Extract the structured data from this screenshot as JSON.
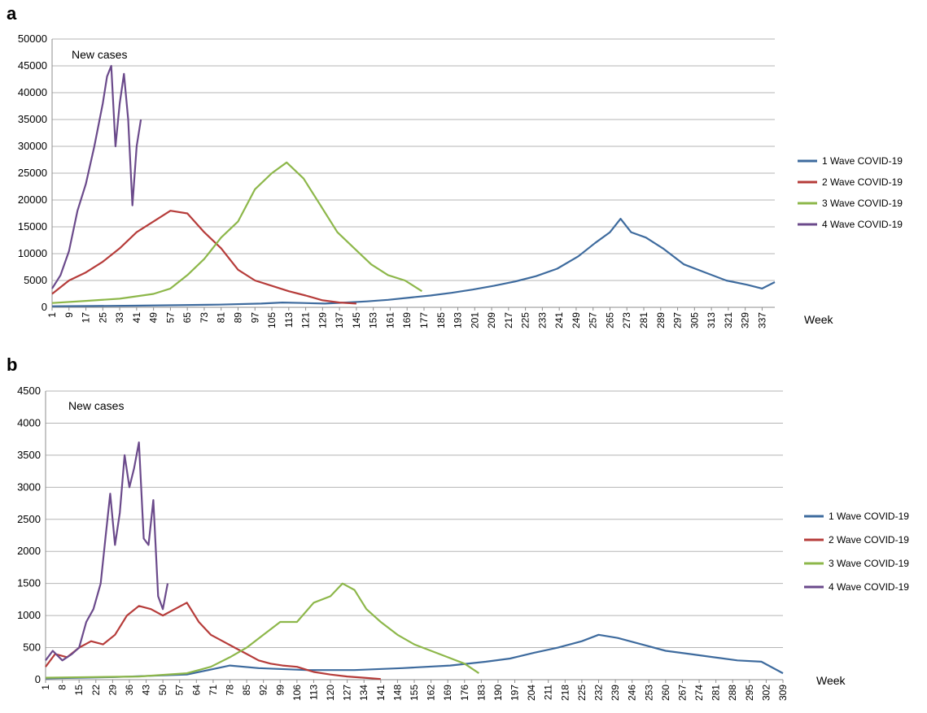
{
  "chart_data": [
    {
      "panel_label": "a",
      "type": "line",
      "annotation": "New cases",
      "xlabel": "Week",
      "ylim": [
        0,
        50000
      ],
      "yticks": [
        0,
        5000,
        10000,
        15000,
        20000,
        25000,
        30000,
        35000,
        40000,
        45000,
        50000
      ],
      "xlim": [
        1,
        343
      ],
      "xticks": [
        1,
        9,
        17,
        25,
        33,
        41,
        49,
        57,
        65,
        73,
        81,
        89,
        97,
        105,
        113,
        121,
        129,
        137,
        145,
        153,
        161,
        169,
        177,
        185,
        193,
        201,
        209,
        217,
        225,
        233,
        241,
        249,
        257,
        265,
        273,
        281,
        289,
        297,
        305,
        313,
        321,
        329,
        337
      ],
      "grid": "horizontal",
      "legend_position": "right",
      "series": [
        {
          "name": "1 Wave COVID-19",
          "color": "#3e6b9e",
          "points": [
            [
              1,
              200
            ],
            [
              20,
              250
            ],
            [
              40,
              300
            ],
            [
              60,
              400
            ],
            [
              80,
              500
            ],
            [
              100,
              700
            ],
            [
              110,
              900
            ],
            [
              120,
              800
            ],
            [
              130,
              700
            ],
            [
              140,
              900
            ],
            [
              150,
              1100
            ],
            [
              160,
              1400
            ],
            [
              170,
              1800
            ],
            [
              180,
              2200
            ],
            [
              190,
              2700
            ],
            [
              200,
              3300
            ],
            [
              210,
              4000
            ],
            [
              220,
              4800
            ],
            [
              230,
              5800
            ],
            [
              240,
              7200
            ],
            [
              250,
              9500
            ],
            [
              258,
              12000
            ],
            [
              265,
              14000
            ],
            [
              270,
              16500
            ],
            [
              275,
              14000
            ],
            [
              282,
              13000
            ],
            [
              290,
              11000
            ],
            [
              300,
              8000
            ],
            [
              310,
              6500
            ],
            [
              320,
              5000
            ],
            [
              330,
              4200
            ],
            [
              337,
              3500
            ],
            [
              343,
              4700
            ]
          ]
        },
        {
          "name": "2 Wave COVID-19",
          "color": "#b63c3a",
          "points": [
            [
              1,
              2500
            ],
            [
              9,
              5000
            ],
            [
              17,
              6500
            ],
            [
              25,
              8500
            ],
            [
              33,
              11000
            ],
            [
              41,
              14000
            ],
            [
              49,
              16000
            ],
            [
              57,
              18000
            ],
            [
              65,
              17500
            ],
            [
              73,
              14000
            ],
            [
              81,
              11000
            ],
            [
              89,
              7000
            ],
            [
              97,
              5000
            ],
            [
              105,
              4000
            ],
            [
              113,
              3000
            ],
            [
              121,
              2200
            ],
            [
              129,
              1300
            ],
            [
              137,
              900
            ],
            [
              145,
              700
            ]
          ]
        },
        {
          "name": "3 Wave COVID-19",
          "color": "#8db74a",
          "points": [
            [
              1,
              800
            ],
            [
              17,
              1200
            ],
            [
              33,
              1600
            ],
            [
              49,
              2500
            ],
            [
              57,
              3500
            ],
            [
              65,
              6000
            ],
            [
              73,
              9000
            ],
            [
              81,
              13000
            ],
            [
              89,
              16000
            ],
            [
              97,
              22000
            ],
            [
              105,
              25000
            ],
            [
              112,
              27000
            ],
            [
              120,
              24000
            ],
            [
              128,
              19000
            ],
            [
              136,
              14000
            ],
            [
              144,
              11000
            ],
            [
              152,
              8000
            ],
            [
              160,
              6000
            ],
            [
              168,
              5000
            ],
            [
              176,
              3000
            ]
          ]
        },
        {
          "name": "4 Wave COVID-19",
          "color": "#6b4a8b",
          "points": [
            [
              1,
              3500
            ],
            [
              5,
              6000
            ],
            [
              9,
              10500
            ],
            [
              13,
              18000
            ],
            [
              17,
              23000
            ],
            [
              21,
              30000
            ],
            [
              25,
              38000
            ],
            [
              27,
              43000
            ],
            [
              29,
              45000
            ],
            [
              31,
              30000
            ],
            [
              33,
              38000
            ],
            [
              35,
              43500
            ],
            [
              37,
              35000
            ],
            [
              39,
              19000
            ],
            [
              41,
              30000
            ],
            [
              43,
              35000
            ]
          ]
        }
      ]
    },
    {
      "panel_label": "b",
      "type": "line",
      "annotation": "New cases",
      "xlabel": "Week",
      "ylim": [
        0,
        4500
      ],
      "yticks": [
        0,
        500,
        1000,
        1500,
        2000,
        2500,
        3000,
        3500,
        4000,
        4500
      ],
      "xlim": [
        1,
        309
      ],
      "xticks": [
        1,
        8,
        15,
        22,
        29,
        36,
        43,
        50,
        57,
        64,
        71,
        78,
        85,
        92,
        99,
        106,
        113,
        120,
        127,
        134,
        141,
        148,
        155,
        162,
        169,
        176,
        183,
        190,
        197,
        204,
        211,
        218,
        225,
        232,
        239,
        246,
        253,
        260,
        267,
        274,
        281,
        288,
        295,
        302,
        309
      ],
      "grid": "horizontal",
      "legend_position": "right",
      "series": [
        {
          "name": "1 Wave COVID-19",
          "color": "#3e6b9e",
          "points": [
            [
              1,
              20
            ],
            [
              30,
              40
            ],
            [
              60,
              80
            ],
            [
              78,
              220
            ],
            [
              90,
              180
            ],
            [
              110,
              150
            ],
            [
              130,
              150
            ],
            [
              150,
              180
            ],
            [
              170,
              220
            ],
            [
              185,
              280
            ],
            [
              195,
              330
            ],
            [
              205,
              420
            ],
            [
              215,
              500
            ],
            [
              225,
              600
            ],
            [
              232,
              700
            ],
            [
              240,
              650
            ],
            [
              250,
              550
            ],
            [
              260,
              450
            ],
            [
              270,
              400
            ],
            [
              280,
              350
            ],
            [
              290,
              300
            ],
            [
              300,
              280
            ],
            [
              309,
              100
            ]
          ]
        },
        {
          "name": "2 Wave COVID-19",
          "color": "#b63c3a",
          "points": [
            [
              1,
              200
            ],
            [
              5,
              400
            ],
            [
              10,
              350
            ],
            [
              15,
              500
            ],
            [
              20,
              600
            ],
            [
              25,
              550
            ],
            [
              30,
              700
            ],
            [
              35,
              1000
            ],
            [
              40,
              1150
            ],
            [
              45,
              1100
            ],
            [
              50,
              1000
            ],
            [
              55,
              1100
            ],
            [
              60,
              1200
            ],
            [
              65,
              900
            ],
            [
              70,
              700
            ],
            [
              75,
              600
            ],
            [
              80,
              500
            ],
            [
              85,
              400
            ],
            [
              90,
              300
            ],
            [
              95,
              250
            ],
            [
              100,
              220
            ],
            [
              106,
              200
            ],
            [
              113,
              120
            ],
            [
              120,
              80
            ],
            [
              127,
              50
            ],
            [
              134,
              30
            ],
            [
              141,
              10
            ]
          ]
        },
        {
          "name": "3 Wave COVID-19",
          "color": "#8db74a",
          "points": [
            [
              1,
              30
            ],
            [
              20,
              40
            ],
            [
              40,
              50
            ],
            [
              60,
              100
            ],
            [
              70,
              200
            ],
            [
              78,
              350
            ],
            [
              85,
              500
            ],
            [
              92,
              700
            ],
            [
              99,
              900
            ],
            [
              106,
              900
            ],
            [
              113,
              1200
            ],
            [
              120,
              1300
            ],
            [
              125,
              1500
            ],
            [
              130,
              1400
            ],
            [
              135,
              1100
            ],
            [
              141,
              900
            ],
            [
              148,
              700
            ],
            [
              155,
              550
            ],
            [
              162,
              450
            ],
            [
              169,
              350
            ],
            [
              176,
              250
            ],
            [
              182,
              100
            ]
          ]
        },
        {
          "name": "4 Wave COVID-19",
          "color": "#6b4a8b",
          "points": [
            [
              1,
              300
            ],
            [
              4,
              450
            ],
            [
              8,
              300
            ],
            [
              12,
              400
            ],
            [
              15,
              500
            ],
            [
              18,
              900
            ],
            [
              21,
              1100
            ],
            [
              24,
              1500
            ],
            [
              26,
              2200
            ],
            [
              28,
              2900
            ],
            [
              30,
              2100
            ],
            [
              32,
              2600
            ],
            [
              34,
              3500
            ],
            [
              36,
              3000
            ],
            [
              38,
              3300
            ],
            [
              40,
              3700
            ],
            [
              42,
              2200
            ],
            [
              44,
              2100
            ],
            [
              46,
              2800
            ],
            [
              48,
              1300
            ],
            [
              50,
              1100
            ],
            [
              52,
              1500
            ]
          ]
        }
      ]
    }
  ]
}
